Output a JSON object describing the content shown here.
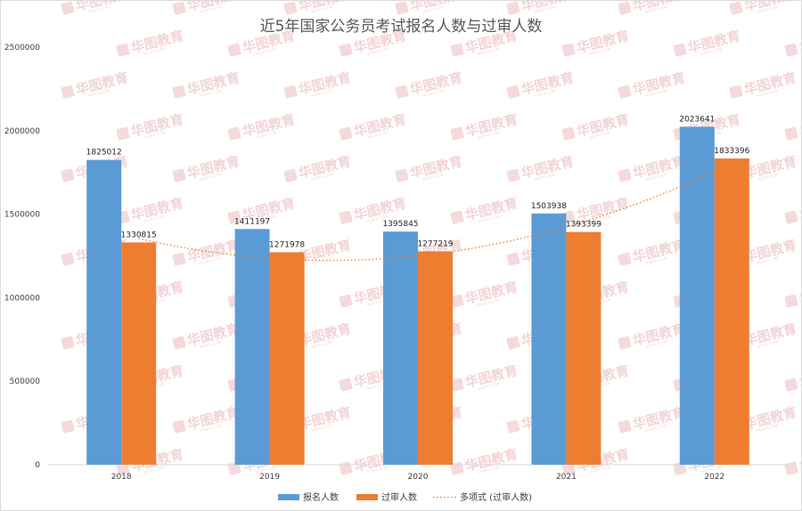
{
  "chart_data": {
    "type": "bar",
    "title": "近5年国家公务员考试报名人数与过审人数",
    "categories": [
      "2018",
      "2019",
      "2020",
      "2021",
      "2022"
    ],
    "series": [
      {
        "name": "报名人数",
        "color": "#5b9bd5",
        "values": [
          1825012,
          1411197,
          1395845,
          1503938,
          2023641
        ],
        "labels": [
          "1825012",
          "1411197",
          "1395845",
          "1503938",
          "2023641"
        ]
      },
      {
        "name": "过审人数",
        "color": "#ed7d31",
        "values": [
          1330815,
          1271978,
          1277219,
          1393399,
          1833396
        ],
        "labels": [
          "1330815",
          "1271978",
          "1277219",
          "1393399",
          "1833396"
        ]
      }
    ],
    "trendline": {
      "name": "多项式 (过审人数)",
      "type": "polynomial",
      "of_series": "过审人数",
      "color": "#ed7d31",
      "style": "dotted"
    },
    "ylim": [
      0,
      2500000
    ],
    "yticks": [
      0,
      500000,
      1000000,
      1500000,
      2000000,
      2500000
    ],
    "ytick_labels": [
      "0",
      "500000",
      "1000000",
      "1500000",
      "2000000",
      "2500000"
    ],
    "xlabel": "",
    "ylabel": "",
    "grid": false,
    "legend": "bottom"
  },
  "watermark": {
    "text": "华图教育",
    "subtext": "HUATU.COM",
    "color": "#e3a2a8"
  }
}
